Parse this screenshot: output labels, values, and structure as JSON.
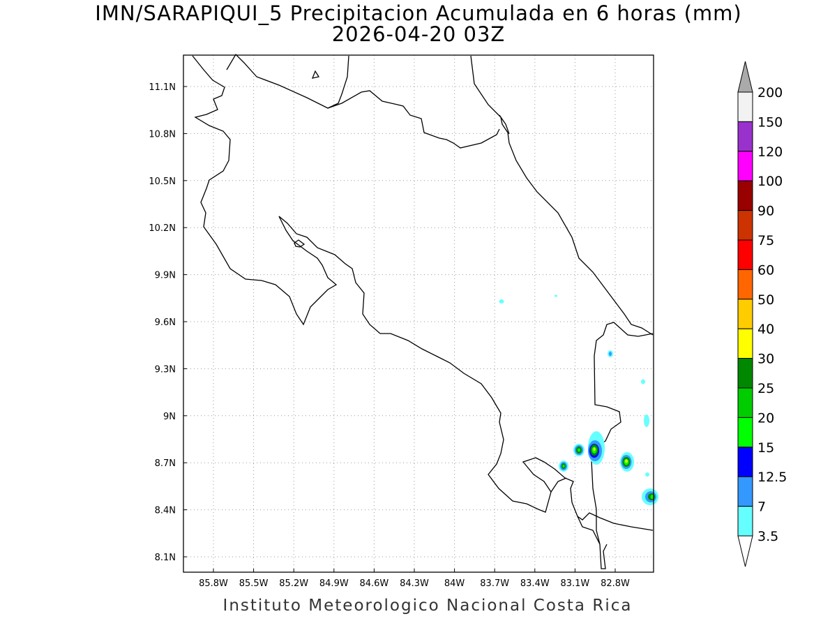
{
  "title": {
    "line1": "IMN/SARAPIQUI_5 Precipitacion Acumulada en 6 horas (mm)",
    "line2": "2026-04-20 03Z"
  },
  "footer": "Instituto Meteorologico Nacional Costa Rica",
  "map": {
    "lon_ticks": [
      "85.8W",
      "85.5W",
      "85.2W",
      "84.9W",
      "84.6W",
      "84.3W",
      "84W",
      "83.7W",
      "83.4W",
      "83.1W",
      "82.8W"
    ],
    "lat_ticks": [
      "11.1N",
      "10.8N",
      "10.5N",
      "10.2N",
      "9.9N",
      "9.6N",
      "9.3N",
      "9N",
      "8.7N",
      "8.4N",
      "8.1N"
    ],
    "grid": true
  },
  "colorbar": {
    "labels": [
      "200",
      "150",
      "120",
      "100",
      "90",
      "75",
      "60",
      "50",
      "40",
      "30",
      "25",
      "20",
      "15",
      "12.5",
      "7",
      "3.5"
    ],
    "colors": [
      "#f2f2f2",
      "#9932cc",
      "#ff00ff",
      "#990000",
      "#cc3300",
      "#ff0000",
      "#ff6600",
      "#ffcc00",
      "#ffff00",
      "#008800",
      "#00cc00",
      "#00ff00",
      "#0000ff",
      "#3399ff",
      "#66ffff"
    ],
    "over_color": "#aaaaaa",
    "under_color": "#ffffff"
  }
}
